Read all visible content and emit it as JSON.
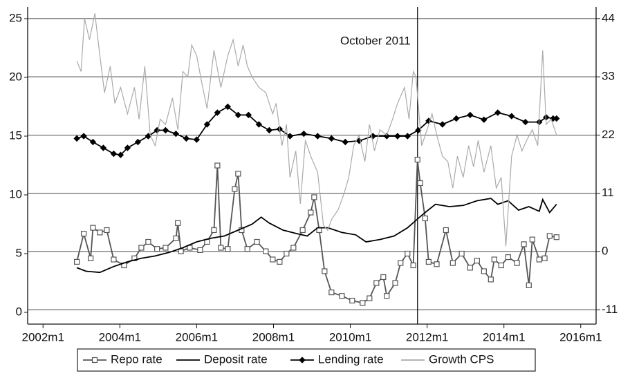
{
  "chart_data": {
    "type": "line",
    "xlim": [
      2001.6,
      2016.4
    ],
    "xticks": [
      {
        "value": 2002,
        "label": "2002m1"
      },
      {
        "value": 2004,
        "label": "2004m1"
      },
      {
        "value": 2006,
        "label": "2006m1"
      },
      {
        "value": 2008,
        "label": "2008m1"
      },
      {
        "value": 2010,
        "label": "2010m1"
      },
      {
        "value": 2012,
        "label": "2012m1"
      },
      {
        "value": 2014,
        "label": "2014m1"
      },
      {
        "value": 2016,
        "label": "2016m1"
      }
    ],
    "ylim": [
      -1,
      26
    ],
    "yticks": [
      0,
      5,
      10,
      15,
      20,
      25
    ],
    "y2lim": [
      -13.7,
      46.2
    ],
    "y2ticks": [
      -11,
      0,
      11,
      22,
      33,
      44
    ],
    "grid": true,
    "annotation": {
      "text": "October 2011",
      "x": 2011.75
    },
    "series": [
      {
        "name": "Repo rate",
        "color": "#555555",
        "marker": "square",
        "x": [
          2002.88,
          2003.06,
          2003.24,
          2003.3,
          2003.48,
          2003.66,
          2003.84,
          2004.11,
          2004.38,
          2004.56,
          2004.74,
          2004.97,
          2005.19,
          2005.46,
          2005.51,
          2005.59,
          2005.82,
          2006.09,
          2006.27,
          2006.45,
          2006.54,
          2006.63,
          2006.81,
          2006.99,
          2007.08,
          2007.17,
          2007.32,
          2007.57,
          2007.8,
          2007.98,
          2008.16,
          2008.34,
          2008.52,
          2008.76,
          2008.97,
          2009.06,
          2009.19,
          2009.33,
          2009.51,
          2009.78,
          2010.05,
          2010.32,
          2010.5,
          2010.68,
          2010.86,
          2010.95,
          2011.17,
          2011.31,
          2011.49,
          2011.64,
          2011.75,
          2011.82,
          2011.95,
          2012.04,
          2012.25,
          2012.49,
          2012.67,
          2012.9,
          2013.12,
          2013.3,
          2013.48,
          2013.66,
          2013.75,
          2013.93,
          2014.11,
          2014.34,
          2014.52,
          2014.65,
          2014.74,
          2014.92,
          2015.06,
          2015.19,
          2015.37
        ],
        "values": [
          4.3,
          6.7,
          4.6,
          7.2,
          6.8,
          7.0,
          4.5,
          4.0,
          4.6,
          5.5,
          6.0,
          5.4,
          5.5,
          6.3,
          7.6,
          5.2,
          5.5,
          5.3,
          6.0,
          7.0,
          12.5,
          5.5,
          5.4,
          10.5,
          11.8,
          7.0,
          5.4,
          6.0,
          5.2,
          4.5,
          4.3,
          5.0,
          5.5,
          7.0,
          8.5,
          9.8,
          7.0,
          3.5,
          1.7,
          1.4,
          1.0,
          0.8,
          1.2,
          2.5,
          3.0,
          1.4,
          2.5,
          4.2,
          5.0,
          4.0,
          13.0,
          11.0,
          8.0,
          4.3,
          4.1,
          7.0,
          4.2,
          5.0,
          3.8,
          4.4,
          3.5,
          2.8,
          4.5,
          4.0,
          4.7,
          4.2,
          5.8,
          2.3,
          6.2,
          4.5,
          4.6,
          6.5,
          6.4
        ]
      },
      {
        "name": "Deposit rate",
        "color": "#000000",
        "marker": null,
        "x": [
          2002.88,
          2003.12,
          2003.48,
          2003.84,
          2004.2,
          2004.56,
          2004.92,
          2005.28,
          2005.64,
          2006.0,
          2006.36,
          2006.72,
          2007.08,
          2007.44,
          2007.68,
          2007.89,
          2008.25,
          2008.61,
          2008.88,
          2009.15,
          2009.42,
          2009.78,
          2010.14,
          2010.41,
          2010.77,
          2011.14,
          2011.49,
          2011.77,
          2011.95,
          2012.22,
          2012.58,
          2012.94,
          2013.3,
          2013.66,
          2013.84,
          2014.11,
          2014.38,
          2014.65,
          2014.92,
          2015.01,
          2015.19,
          2015.37
        ],
        "values": [
          3.8,
          3.5,
          3.4,
          3.9,
          4.3,
          4.6,
          4.8,
          5.1,
          5.5,
          6.0,
          6.3,
          6.5,
          7.0,
          7.5,
          8.1,
          7.6,
          7.0,
          6.7,
          6.5,
          7.2,
          7.2,
          6.8,
          6.6,
          6.0,
          6.2,
          6.5,
          7.2,
          8.0,
          8.5,
          9.2,
          9.0,
          9.1,
          9.5,
          9.7,
          9.2,
          9.5,
          8.7,
          9.0,
          8.6,
          9.6,
          8.5,
          9.2
        ]
      },
      {
        "name": "Lending rate",
        "color": "#000000",
        "marker": "diamond",
        "x": [
          2002.88,
          2003.06,
          2003.3,
          2003.57,
          2003.84,
          2004.02,
          2004.2,
          2004.47,
          2004.74,
          2004.97,
          2005.19,
          2005.46,
          2005.73,
          2006.0,
          2006.27,
          2006.54,
          2006.81,
          2007.08,
          2007.35,
          2007.62,
          2007.89,
          2008.16,
          2008.43,
          2008.79,
          2009.15,
          2009.51,
          2009.87,
          2010.23,
          2010.59,
          2010.95,
          2011.23,
          2011.49,
          2011.77,
          2012.04,
          2012.4,
          2012.76,
          2013.12,
          2013.48,
          2013.84,
          2014.2,
          2014.56,
          2014.92,
          2015.1,
          2015.28,
          2015.37
        ],
        "values": [
          14.8,
          15.0,
          14.5,
          14.0,
          13.5,
          13.4,
          14.0,
          14.5,
          15.0,
          15.5,
          15.5,
          15.2,
          14.8,
          14.7,
          16.0,
          17.0,
          17.5,
          16.8,
          16.8,
          16.0,
          15.5,
          15.6,
          15.0,
          15.2,
          15.0,
          14.8,
          14.5,
          14.6,
          15.0,
          15.0,
          15.0,
          15.0,
          15.5,
          16.3,
          16.0,
          16.5,
          16.8,
          16.4,
          17.0,
          16.7,
          16.2,
          16.2,
          16.6,
          16.5,
          16.5
        ]
      },
      {
        "name": "Growth CPS",
        "color": "#aaaaaa",
        "marker": null,
        "axis": "y2",
        "x": [
          2002.88,
          2002.99,
          2003.08,
          2003.21,
          2003.35,
          2003.48,
          2003.6,
          2003.75,
          2003.87,
          2004.02,
          2004.2,
          2004.38,
          2004.5,
          2004.65,
          2004.79,
          2004.92,
          2005.05,
          2005.19,
          2005.37,
          2005.51,
          2005.64,
          2005.77,
          2005.87,
          2006.0,
          2006.13,
          2006.27,
          2006.45,
          2006.63,
          2006.81,
          2006.95,
          2007.08,
          2007.21,
          2007.32,
          2007.44,
          2007.62,
          2007.8,
          2007.98,
          2008.07,
          2008.22,
          2008.34,
          2008.43,
          2008.58,
          2008.7,
          2008.83,
          2008.97,
          2009.15,
          2009.3,
          2009.41,
          2009.51,
          2009.69,
          2009.84,
          2009.96,
          2010.09,
          2010.23,
          2010.38,
          2010.5,
          2010.63,
          2010.77,
          2010.95,
          2011.1,
          2011.23,
          2011.41,
          2011.53,
          2011.64,
          2011.71,
          2011.86,
          2012.0,
          2012.13,
          2012.25,
          2012.4,
          2012.54,
          2012.67,
          2012.79,
          2012.94,
          2013.08,
          2013.21,
          2013.33,
          2013.48,
          2013.66,
          2013.8,
          2013.93,
          2014.05,
          2014.2,
          2014.34,
          2014.47,
          2014.59,
          2014.74,
          2014.88,
          2015.01,
          2015.1,
          2015.23,
          2015.37
        ],
        "values": [
          36,
          34,
          44,
          40,
          45,
          37,
          30,
          35,
          28,
          31,
          26,
          31,
          25,
          35,
          22,
          20,
          25,
          24,
          29,
          23,
          34,
          33,
          39,
          37,
          32,
          27,
          38,
          31,
          37,
          40,
          35,
          39,
          35,
          33,
          31,
          30,
          26,
          28,
          20,
          24,
          14,
          19,
          9,
          21,
          18,
          15,
          5,
          4,
          6,
          8,
          11,
          14,
          20,
          22,
          17,
          24,
          19,
          23,
          22,
          25,
          28,
          31,
          25,
          34,
          33,
          20,
          23,
          26,
          22,
          18,
          17,
          12,
          18,
          14,
          20,
          16,
          21,
          15,
          20,
          12,
          14,
          1,
          18,
          22,
          19,
          21,
          23,
          20,
          38,
          24,
          25,
          22
        ]
      }
    ]
  }
}
